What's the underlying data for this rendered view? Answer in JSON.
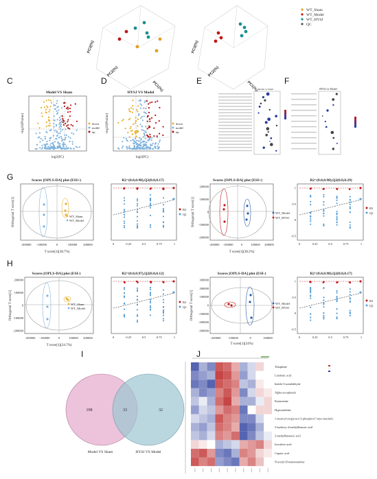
{
  "panel_labels": [
    "C",
    "D",
    "E",
    "F",
    "G",
    "H",
    "I",
    "J"
  ],
  "pca": {
    "legend": [
      "WT_Sham",
      "WT_Model",
      "WT_HYSJ",
      "QC"
    ],
    "colors": [
      "#e0a020",
      "#c01818",
      "#1a9090",
      "#555555"
    ],
    "left_axes": [
      "PC3(%)",
      "PC2(%)",
      "PC1(%)"
    ],
    "right_axes": [
      "PC3(%)",
      "PC2(%)",
      "PC1(%)"
    ]
  },
  "volcano_c": {
    "title": "Model VS Sham",
    "xlabel": "log2(FC)",
    "ylabel": "-log10(Pvalue)",
    "legend": [
      "down",
      "nodiff",
      "up"
    ]
  },
  "volcano_d": {
    "title": "HYSJ VS Model",
    "xlabel": "log2(FC)",
    "ylabel": "-log10(Pvalue)",
    "legend": [
      "down",
      "nodiff",
      "up"
    ]
  },
  "kegg_e": {
    "title": "Model vs Sham"
  },
  "kegg_f": {
    "title": "HYSJ vs Model"
  },
  "opls": {
    "g1": {
      "title": "Scores [OPLS-DA] plot (ESI+)",
      "xlabel": "T score[1](38.7%)",
      "ylabel": "Orthogonal T score[1]",
      "legend": [
        "WT_Sham",
        "WT_Model"
      ],
      "xticks": [
        "-200000",
        "-100000",
        "0",
        "100000",
        "200000"
      ]
    },
    "g3": {
      "title": "Scores [OPLS-DA] plot (ESI+)",
      "xlabel": "T score[1](38.2%)",
      "ylabel": "Orthogonal T score[1]",
      "legend": [
        "WT_Model",
        "WT_HYSJ"
      ],
      "xticks": [
        "-200000",
        "-100000",
        "0",
        "100000",
        "200000"
      ],
      "yticks": [
        "200000",
        "100000",
        "0",
        "-100000",
        "-200000"
      ]
    },
    "h1": {
      "title": "Scores [OPLS-DA] plot (ESI-)",
      "xlabel": "T score[1](24.7%)",
      "ylabel": "Orthogonal T score[1]",
      "legend": [
        "WT_Sham",
        "WT_Model"
      ],
      "xticks": [
        "-200000",
        "-100000",
        "0",
        "100000",
        "200000"
      ],
      "yticks": [
        "200000",
        "100000",
        "0",
        "-100000",
        "-200000"
      ]
    },
    "h3": {
      "title": "Scores [OPLS-DA] plot (ESI-)",
      "xlabel": "T score[1](24%)",
      "ylabel": "Orthogonal T score[1]",
      "legend": [
        "WT_Model",
        "WT_HYSJ"
      ],
      "xticks": [
        "-200000",
        "-100000",
        "0",
        "100000"
      ],
      "yticks": [
        "300000",
        "200000",
        "100000",
        "0",
        "-100000",
        "-200000",
        "-300000"
      ]
    }
  },
  "perm": {
    "g2": {
      "title": "R2=(0.0,0.98),Q2(0.0,0.17)",
      "legend": [
        "R2",
        "Q2"
      ]
    },
    "g4": {
      "title": "R2=(0.0,0.98),Q2(0.0,0.29)",
      "legend": [
        "R2",
        "Q2"
      ],
      "yticks": [
        "1",
        "0.5",
        "0",
        "-0.5"
      ]
    },
    "h2": {
      "title": "R2=(0.0,0.97),Q2(0.0,0.12)",
      "legend": [
        "R2",
        "Q2"
      ]
    },
    "h4": {
      "title": "R2=(0.0,0.98),Q2(0.0,0.17)",
      "legend": [
        "R2",
        "Q2"
      ],
      "yticks": [
        "1",
        "0.5",
        "0",
        "-0.5"
      ]
    },
    "xticks": [
      "0",
      "0.25",
      "0.5",
      "0.75",
      "1"
    ]
  },
  "chart_data": [
    {
      "type": "venn",
      "sets": [
        {
          "name": "Model VS Sham",
          "only": 198
        },
        {
          "name": "HYSJ VS Model",
          "only": 32
        }
      ],
      "intersection": 33
    },
    {
      "type": "heatmap",
      "rows": [
        "Thiophene",
        "Linolenic acid",
        "Indole-3-acetaldehyde",
        "Alpha-tocopherols",
        "Kynurenine",
        "Hypoxanthine",
        "1-stearoyl-sn-glycero-3-phospho-(1'-myo-inositol)",
        "2-hydroxy-4-methylbenzoic acid",
        "2-methylbutanoic acid",
        "Isovaleric acid",
        "Caproic acid",
        "N-acetyl-D-mannosamine"
      ],
      "colors": [
        "#c03030",
        "#ffffff",
        "#2a3c9c"
      ]
    }
  ]
}
